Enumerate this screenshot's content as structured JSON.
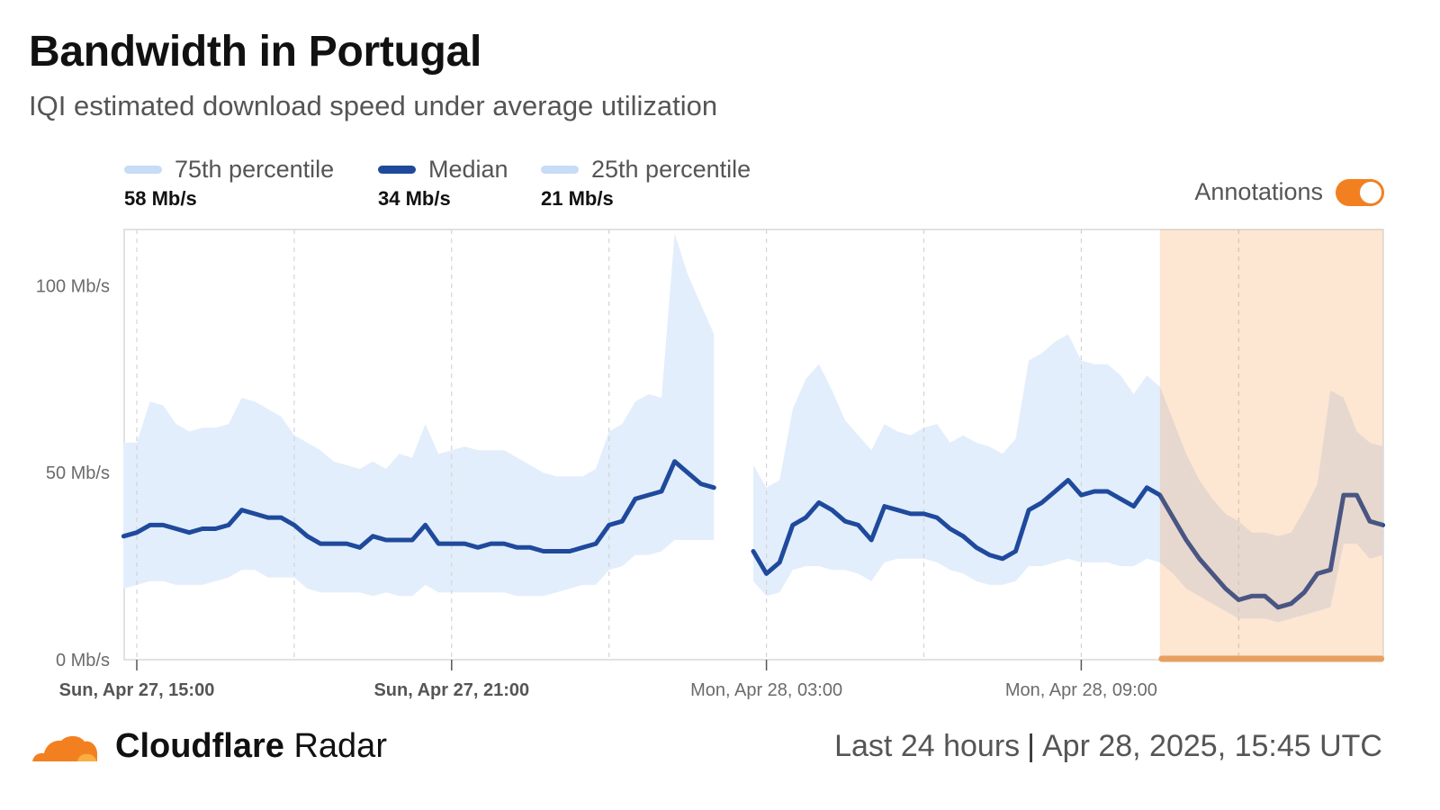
{
  "header": {
    "title": "Bandwidth in Portugal",
    "subtitle": "IQI estimated download speed under average utilization"
  },
  "legend": [
    {
      "label": "75th percentile",
      "value": "58 Mb/s",
      "color": "#c6dcf7"
    },
    {
      "label": "Median",
      "value": "34 Mb/s",
      "color": "#1f4a9c"
    },
    {
      "label": "25th percentile",
      "value": "21 Mb/s",
      "color": "#c6dcf7"
    }
  ],
  "annotations": {
    "label": "Annotations",
    "enabled": true,
    "color": "#f38020"
  },
  "footer": {
    "brand_bold": "Cloudflare",
    "brand_light": "Radar",
    "range": "Last 24 hours",
    "timestamp": "Apr 28, 2025, 15:45 UTC"
  },
  "chart_data": {
    "type": "area",
    "y_ticks": [
      "0 Mb/s",
      "50 Mb/s",
      "100 Mb/s"
    ],
    "y_tick_values": [
      0,
      50,
      100
    ],
    "ylim": [
      0,
      115
    ],
    "x_labels": [
      "Sun, Apr 27, 15:00",
      "Sun, Apr 27, 21:00",
      "Mon, Apr 28, 03:00",
      "Mon, Apr 28, 09:00"
    ],
    "x_label_bold": [
      true,
      true,
      false,
      false
    ],
    "x_label_hours": [
      0,
      6,
      12,
      18
    ],
    "x_range_hours": [
      -0.25,
      23.75
    ],
    "grid_hours": [
      0,
      3,
      6,
      9,
      12,
      15,
      18,
      21
    ],
    "annotation_range_hours": [
      19.5,
      23.75
    ],
    "series": [
      {
        "name": "75th percentile",
        "points": [
          [
            -0.25,
            58
          ],
          [
            0,
            58
          ],
          [
            0.25,
            69
          ],
          [
            0.5,
            68
          ],
          [
            0.75,
            63
          ],
          [
            1,
            61
          ],
          [
            1.25,
            62
          ],
          [
            1.5,
            62
          ],
          [
            1.75,
            63
          ],
          [
            2,
            70
          ],
          [
            2.25,
            69
          ],
          [
            2.5,
            67
          ],
          [
            2.75,
            65
          ],
          [
            3,
            60
          ],
          [
            3.25,
            58
          ],
          [
            3.5,
            56
          ],
          [
            3.75,
            53
          ],
          [
            4,
            52
          ],
          [
            4.25,
            51
          ],
          [
            4.5,
            53
          ],
          [
            4.75,
            51
          ],
          [
            5,
            55
          ],
          [
            5.25,
            54
          ],
          [
            5.5,
            63
          ],
          [
            5.75,
            55
          ],
          [
            6,
            56
          ],
          [
            6.25,
            57
          ],
          [
            6.5,
            56
          ],
          [
            6.75,
            56
          ],
          [
            7,
            56
          ],
          [
            7.25,
            54
          ],
          [
            7.5,
            52
          ],
          [
            7.75,
            50
          ],
          [
            8,
            49
          ],
          [
            8.25,
            49
          ],
          [
            8.5,
            49
          ],
          [
            8.75,
            51
          ],
          [
            9,
            61
          ],
          [
            9.25,
            63
          ],
          [
            9.5,
            69
          ],
          [
            9.75,
            71
          ],
          [
            10,
            70
          ],
          [
            10.25,
            114
          ],
          [
            10.5,
            103
          ],
          [
            10.75,
            95
          ],
          [
            11,
            87
          ],
          [
            11.75,
            52
          ],
          [
            12,
            46
          ],
          [
            12.25,
            48
          ],
          [
            12.5,
            67
          ],
          [
            12.75,
            75
          ],
          [
            13,
            79
          ],
          [
            13.25,
            72
          ],
          [
            13.5,
            64
          ],
          [
            13.75,
            60
          ],
          [
            14,
            56
          ],
          [
            14.25,
            63
          ],
          [
            14.5,
            61
          ],
          [
            14.75,
            60
          ],
          [
            15,
            62
          ],
          [
            15.25,
            63
          ],
          [
            15.5,
            58
          ],
          [
            15.75,
            60
          ],
          [
            16,
            58
          ],
          [
            16.25,
            57
          ],
          [
            16.5,
            55
          ],
          [
            16.75,
            59
          ],
          [
            17,
            80
          ],
          [
            17.25,
            82
          ],
          [
            17.5,
            85
          ],
          [
            17.75,
            87
          ],
          [
            18,
            80
          ],
          [
            18.25,
            79
          ],
          [
            18.5,
            79
          ],
          [
            18.75,
            76
          ],
          [
            19,
            71
          ],
          [
            19.25,
            76
          ],
          [
            19.5,
            73
          ],
          [
            19.75,
            64
          ],
          [
            20,
            55
          ],
          [
            20.25,
            48
          ],
          [
            20.5,
            43
          ],
          [
            20.75,
            39
          ],
          [
            21,
            37
          ],
          [
            21.25,
            34
          ],
          [
            21.5,
            34
          ],
          [
            21.75,
            33
          ],
          [
            22,
            34
          ],
          [
            22.25,
            40
          ],
          [
            22.5,
            47
          ],
          [
            22.75,
            72
          ],
          [
            23,
            70
          ],
          [
            23.25,
            61
          ],
          [
            23.5,
            58
          ],
          [
            23.75,
            57
          ]
        ]
      },
      {
        "name": "Median",
        "points": [
          [
            -0.25,
            33
          ],
          [
            0,
            34
          ],
          [
            0.25,
            36
          ],
          [
            0.5,
            36
          ],
          [
            0.75,
            35
          ],
          [
            1,
            34
          ],
          [
            1.25,
            35
          ],
          [
            1.5,
            35
          ],
          [
            1.75,
            36
          ],
          [
            2,
            40
          ],
          [
            2.25,
            39
          ],
          [
            2.5,
            38
          ],
          [
            2.75,
            38
          ],
          [
            3,
            36
          ],
          [
            3.25,
            33
          ],
          [
            3.5,
            31
          ],
          [
            3.75,
            31
          ],
          [
            4,
            31
          ],
          [
            4.25,
            30
          ],
          [
            4.5,
            33
          ],
          [
            4.75,
            32
          ],
          [
            5,
            32
          ],
          [
            5.25,
            32
          ],
          [
            5.5,
            36
          ],
          [
            5.75,
            31
          ],
          [
            6,
            31
          ],
          [
            6.25,
            31
          ],
          [
            6.5,
            30
          ],
          [
            6.75,
            31
          ],
          [
            7,
            31
          ],
          [
            7.25,
            30
          ],
          [
            7.5,
            30
          ],
          [
            7.75,
            29
          ],
          [
            8,
            29
          ],
          [
            8.25,
            29
          ],
          [
            8.5,
            30
          ],
          [
            8.75,
            31
          ],
          [
            9,
            36
          ],
          [
            9.25,
            37
          ],
          [
            9.5,
            43
          ],
          [
            9.75,
            44
          ],
          [
            10,
            45
          ],
          [
            10.25,
            53
          ],
          [
            10.5,
            50
          ],
          [
            10.75,
            47
          ],
          [
            11,
            46
          ],
          [
            11.75,
            29
          ],
          [
            12,
            23
          ],
          [
            12.25,
            26
          ],
          [
            12.5,
            36
          ],
          [
            12.75,
            38
          ],
          [
            13,
            42
          ],
          [
            13.25,
            40
          ],
          [
            13.5,
            37
          ],
          [
            13.75,
            36
          ],
          [
            14,
            32
          ],
          [
            14.25,
            41
          ],
          [
            14.5,
            40
          ],
          [
            14.75,
            39
          ],
          [
            15,
            39
          ],
          [
            15.25,
            38
          ],
          [
            15.5,
            35
          ],
          [
            15.75,
            33
          ],
          [
            16,
            30
          ],
          [
            16.25,
            28
          ],
          [
            16.5,
            27
          ],
          [
            16.75,
            29
          ],
          [
            17,
            40
          ],
          [
            17.25,
            42
          ],
          [
            17.5,
            45
          ],
          [
            17.75,
            48
          ],
          [
            18,
            44
          ],
          [
            18.25,
            45
          ],
          [
            18.5,
            45
          ],
          [
            18.75,
            43
          ],
          [
            19,
            41
          ],
          [
            19.25,
            46
          ],
          [
            19.5,
            44
          ],
          [
            19.75,
            38
          ],
          [
            20,
            32
          ],
          [
            20.25,
            27
          ],
          [
            20.5,
            23
          ],
          [
            20.75,
            19
          ],
          [
            21,
            16
          ],
          [
            21.25,
            17
          ],
          [
            21.5,
            17
          ],
          [
            21.75,
            14
          ],
          [
            22,
            15
          ],
          [
            22.25,
            18
          ],
          [
            22.5,
            23
          ],
          [
            22.75,
            24
          ],
          [
            23,
            44
          ],
          [
            23.25,
            44
          ],
          [
            23.5,
            37
          ],
          [
            23.75,
            36
          ]
        ]
      },
      {
        "name": "25th percentile",
        "points": [
          [
            -0.25,
            19
          ],
          [
            0,
            20
          ],
          [
            0.25,
            21
          ],
          [
            0.5,
            21
          ],
          [
            0.75,
            20
          ],
          [
            1,
            20
          ],
          [
            1.25,
            20
          ],
          [
            1.5,
            21
          ],
          [
            1.75,
            22
          ],
          [
            2,
            24
          ],
          [
            2.25,
            24
          ],
          [
            2.5,
            22
          ],
          [
            2.75,
            22
          ],
          [
            3,
            22
          ],
          [
            3.25,
            19
          ],
          [
            3.5,
            18
          ],
          [
            3.75,
            18
          ],
          [
            4,
            18
          ],
          [
            4.25,
            18
          ],
          [
            4.5,
            17
          ],
          [
            4.75,
            18
          ],
          [
            5,
            17
          ],
          [
            5.25,
            17
          ],
          [
            5.5,
            20
          ],
          [
            5.75,
            18
          ],
          [
            6,
            18
          ],
          [
            6.25,
            18
          ],
          [
            6.5,
            18
          ],
          [
            6.75,
            18
          ],
          [
            7,
            18
          ],
          [
            7.25,
            17
          ],
          [
            7.5,
            17
          ],
          [
            7.75,
            17
          ],
          [
            8,
            18
          ],
          [
            8.25,
            19
          ],
          [
            8.5,
            20
          ],
          [
            8.75,
            20
          ],
          [
            9,
            24
          ],
          [
            9.25,
            25
          ],
          [
            9.5,
            28
          ],
          [
            9.75,
            28
          ],
          [
            10,
            29
          ],
          [
            10.25,
            32
          ],
          [
            10.5,
            32
          ],
          [
            10.75,
            32
          ],
          [
            11,
            32
          ],
          [
            11.75,
            21
          ],
          [
            12,
            17
          ],
          [
            12.25,
            18
          ],
          [
            12.5,
            24
          ],
          [
            12.75,
            25
          ],
          [
            13,
            25
          ],
          [
            13.25,
            24
          ],
          [
            13.5,
            24
          ],
          [
            13.75,
            23
          ],
          [
            14,
            21
          ],
          [
            14.25,
            26
          ],
          [
            14.5,
            27
          ],
          [
            14.75,
            27
          ],
          [
            15,
            27
          ],
          [
            15.25,
            26
          ],
          [
            15.5,
            24
          ],
          [
            15.75,
            23
          ],
          [
            16,
            21
          ],
          [
            16.25,
            20
          ],
          [
            16.5,
            20
          ],
          [
            16.75,
            21
          ],
          [
            17,
            25
          ],
          [
            17.25,
            25
          ],
          [
            17.5,
            26
          ],
          [
            17.75,
            27
          ],
          [
            18,
            26
          ],
          [
            18.25,
            26
          ],
          [
            18.5,
            26
          ],
          [
            18.75,
            25
          ],
          [
            19,
            25
          ],
          [
            19.25,
            27
          ],
          [
            19.5,
            26
          ],
          [
            19.75,
            23
          ],
          [
            20,
            19
          ],
          [
            20.25,
            17
          ],
          [
            20.5,
            15
          ],
          [
            20.75,
            13
          ],
          [
            21,
            11
          ],
          [
            21.25,
            11
          ],
          [
            21.5,
            11
          ],
          [
            21.75,
            10
          ],
          [
            22,
            11
          ],
          [
            22.25,
            12
          ],
          [
            22.5,
            13
          ],
          [
            22.75,
            14
          ],
          [
            23,
            31
          ],
          [
            23.25,
            31
          ],
          [
            23.5,
            27
          ],
          [
            23.75,
            28
          ]
        ]
      }
    ]
  }
}
